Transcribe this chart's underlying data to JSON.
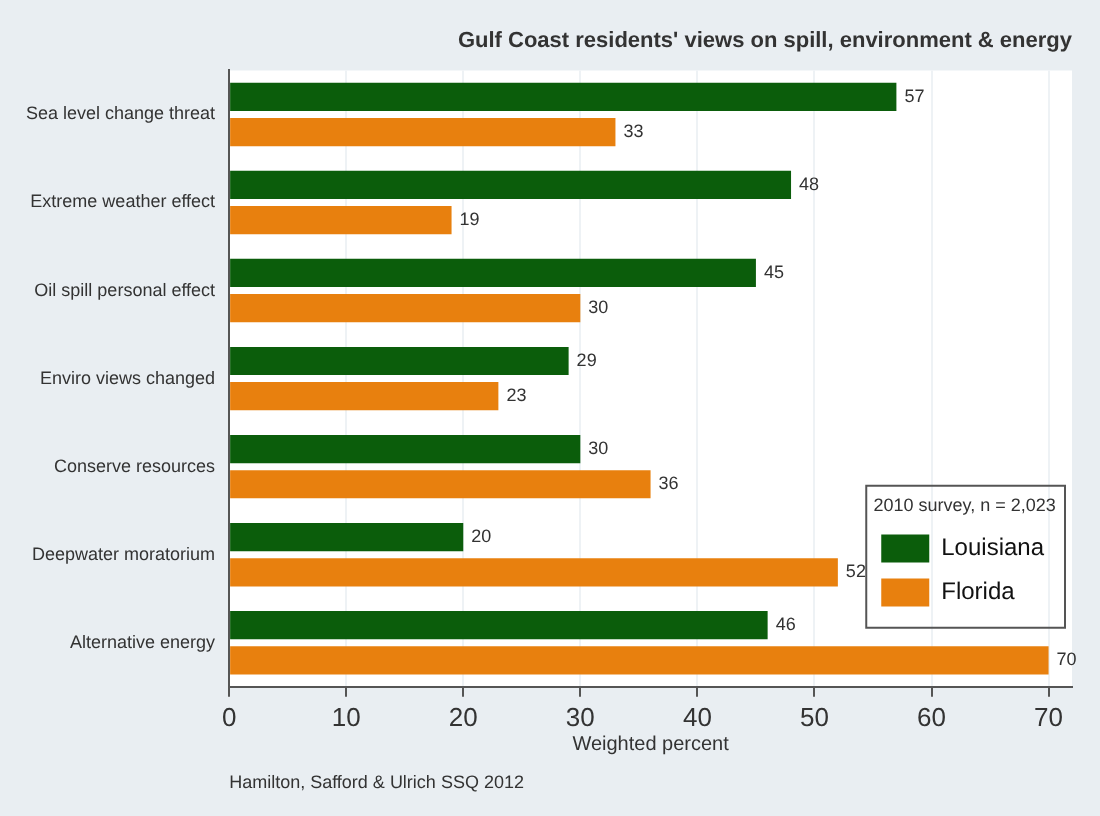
{
  "chart_data": {
    "type": "bar",
    "orientation": "horizontal",
    "title": "Gulf Coast residents' views on spill, environment & energy",
    "xlabel": "Weighted percent",
    "categories": [
      "Sea level change threat",
      "Extreme weather effect",
      "Oil spill personal effect",
      "Enviro views changed",
      "Conserve resources",
      "Deepwater moratorium",
      "Alternative energy"
    ],
    "series": [
      {
        "name": "Louisiana",
        "color": "#0b5d0b",
        "values": [
          57,
          48,
          45,
          29,
          30,
          20,
          46
        ]
      },
      {
        "name": "Florida",
        "color": "#e8800e",
        "values": [
          33,
          19,
          30,
          23,
          36,
          52,
          70
        ]
      }
    ],
    "xlim": [
      0,
      72
    ],
    "xticks": [
      0,
      10,
      20,
      30,
      40,
      50,
      60,
      70
    ],
    "grid": "x",
    "data_labels": true,
    "legend": "right",
    "legend_title": "2010 survey, n = 2,023",
    "annotations": [
      "Hamilton, Safford & Ulrich SSQ 2012"
    ]
  }
}
